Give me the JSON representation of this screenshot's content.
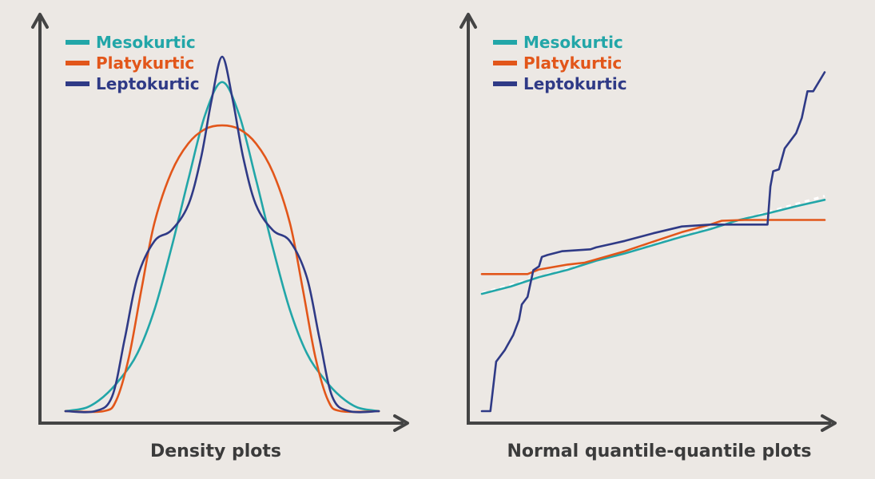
{
  "colors": {
    "background": "#ece8e4",
    "axis": "#444444",
    "mesokurtic": "#22a6a8",
    "platykurtic": "#e2561a",
    "leptokurtic": "#2f3a86",
    "reference": "#ffffff"
  },
  "chart_data": [
    {
      "type": "line",
      "title": "Density plots",
      "xlabel": "",
      "ylabel": "",
      "xlim": [
        -4,
        4
      ],
      "ylim": [
        0,
        1
      ],
      "grid": false,
      "ticks": false,
      "legend": "top-left",
      "series": [
        {
          "name": "Mesokurtic",
          "color_key": "mesokurtic",
          "x": [
            -3.7,
            -3.2,
            -2.8,
            -2.4,
            -2.0,
            -1.6,
            -1.2,
            -0.8,
            -0.4,
            0,
            0.4,
            0.8,
            1.2,
            1.6,
            2.0,
            2.4,
            2.8,
            3.2,
            3.7
          ],
          "y": [
            0.0,
            0.01,
            0.04,
            0.09,
            0.16,
            0.28,
            0.45,
            0.64,
            0.82,
            0.91,
            0.82,
            0.64,
            0.45,
            0.28,
            0.16,
            0.09,
            0.04,
            0.01,
            0.0
          ]
        },
        {
          "name": "Platykurtic",
          "color_key": "platykurtic",
          "x": [
            -3.7,
            -2.8,
            -2.5,
            -2.2,
            -1.9,
            -1.6,
            -1.2,
            -0.8,
            -0.4,
            0,
            0.4,
            0.8,
            1.2,
            1.6,
            1.9,
            2.2,
            2.5,
            2.8,
            3.7
          ],
          "y": [
            0.0,
            0.0,
            0.03,
            0.15,
            0.34,
            0.52,
            0.66,
            0.74,
            0.78,
            0.79,
            0.78,
            0.74,
            0.66,
            0.52,
            0.34,
            0.15,
            0.03,
            0.0,
            0.0
          ]
        },
        {
          "name": "Leptokurtic",
          "color_key": "leptokurtic",
          "x": [
            -3.7,
            -3.0,
            -2.6,
            -2.3,
            -2.0,
            -1.6,
            -1.2,
            -0.8,
            -0.5,
            -0.25,
            0,
            0.25,
            0.5,
            0.8,
            1.2,
            1.6,
            2.0,
            2.3,
            2.6,
            3.0,
            3.7
          ],
          "y": [
            0.0,
            0.0,
            0.04,
            0.2,
            0.37,
            0.47,
            0.5,
            0.57,
            0.7,
            0.86,
            0.98,
            0.86,
            0.7,
            0.57,
            0.5,
            0.47,
            0.37,
            0.2,
            0.04,
            0.0,
            0.0
          ]
        }
      ]
    },
    {
      "type": "line",
      "title": "Normal quantile-quantile plots",
      "xlabel": "",
      "ylabel": "",
      "xlim": [
        -3,
        3
      ],
      "ylim": [
        -4,
        6
      ],
      "grid": false,
      "ticks": false,
      "legend": "top-left",
      "reference_line": {
        "x": [
          -3,
          3
        ],
        "y": [
          -0.9,
          1.65
        ],
        "style": "dashed"
      },
      "series": [
        {
          "name": "Mesokurtic",
          "color_key": "mesokurtic",
          "x": [
            -3.0,
            -2.5,
            -2.0,
            -1.5,
            -1.0,
            -0.5,
            0,
            0.5,
            1.0,
            1.5,
            2.0,
            2.5,
            3.0
          ],
          "y": [
            -0.92,
            -0.73,
            -0.48,
            -0.29,
            -0.05,
            0.14,
            0.36,
            0.58,
            0.78,
            1.02,
            1.19,
            1.38,
            1.55
          ]
        },
        {
          "name": "Platykurtic",
          "color_key": "platykurtic",
          "x": [
            -3.0,
            -2.2,
            -2.0,
            -1.5,
            -1.2,
            -0.5,
            0,
            0.5,
            1.0,
            1.2,
            1.6,
            2.0,
            3.0
          ],
          "y": [
            -0.4,
            -0.4,
            -0.28,
            -0.15,
            -0.1,
            0.2,
            0.45,
            0.7,
            0.9,
            1.0,
            1.02,
            1.02,
            1.02
          ]
        },
        {
          "name": "Leptokurtic",
          "color_key": "leptokurtic",
          "x": [
            -3.0,
            -2.85,
            -2.75,
            -2.6,
            -2.45,
            -2.35,
            -2.3,
            -2.2,
            -2.1,
            -2.0,
            -1.95,
            -1.85,
            -1.6,
            -1.1,
            -1.0,
            -0.5,
            0,
            0.5,
            1.0,
            1.5,
            2.0,
            2.05,
            2.1,
            2.2,
            2.3,
            2.5,
            2.6,
            2.7,
            2.8,
            3.0
          ],
          "y": [
            -4.0,
            -4.0,
            -2.7,
            -2.4,
            -2.0,
            -1.6,
            -1.2,
            -1.0,
            -0.3,
            -0.2,
            0.05,
            0.1,
            0.2,
            0.25,
            0.3,
            0.47,
            0.67,
            0.85,
            0.9,
            0.9,
            0.9,
            1.9,
            2.3,
            2.35,
            2.9,
            3.3,
            3.7,
            4.4,
            4.4,
            4.9
          ]
        }
      ]
    }
  ]
}
